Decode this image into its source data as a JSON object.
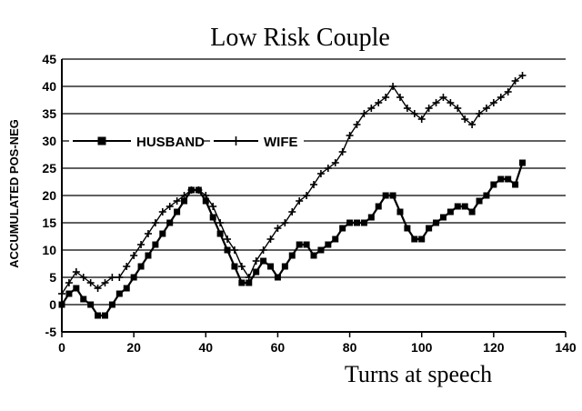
{
  "chart_data": {
    "type": "line",
    "title": "Low Risk Couple",
    "xlabel": "Turns at speech",
    "ylabel": "ACCUMULATED POS-NEG",
    "xlim": [
      0,
      140
    ],
    "ylim": [
      -5,
      45
    ],
    "xticks": [
      0,
      20,
      40,
      60,
      80,
      100,
      120,
      140
    ],
    "yticks": [
      -5,
      0,
      5,
      10,
      15,
      20,
      25,
      30,
      35,
      40,
      45
    ],
    "grid": "horizontal",
    "legend_position": "upper-left",
    "series": [
      {
        "name": "HUSBAND",
        "marker": "square",
        "x": [
          0,
          2,
          4,
          6,
          8,
          10,
          12,
          14,
          16,
          18,
          20,
          22,
          24,
          26,
          28,
          30,
          32,
          34,
          36,
          38,
          40,
          42,
          44,
          46,
          48,
          50,
          52,
          54,
          56,
          58,
          60,
          62,
          64,
          66,
          68,
          70,
          72,
          74,
          76,
          78,
          80,
          82,
          84,
          86,
          88,
          90,
          92,
          94,
          96,
          98,
          100,
          102,
          104,
          106,
          108,
          110,
          112,
          114,
          116,
          118,
          120,
          122,
          124,
          126,
          128
        ],
        "y": [
          0,
          2,
          3,
          1,
          0,
          -2,
          -2,
          0,
          2,
          3,
          5,
          7,
          9,
          11,
          13,
          15,
          17,
          19,
          21,
          21,
          19,
          16,
          13,
          10,
          7,
          4,
          4,
          6,
          8,
          7,
          5,
          7,
          9,
          11,
          11,
          9,
          10,
          11,
          12,
          14,
          15,
          15,
          15,
          16,
          18,
          20,
          20,
          17,
          14,
          12,
          12,
          14,
          15,
          16,
          17,
          18,
          18,
          17,
          19,
          20,
          22,
          23,
          23,
          22,
          26
        ]
      },
      {
        "name": "WIFE",
        "marker": "plus",
        "x": [
          0,
          2,
          4,
          6,
          8,
          10,
          12,
          14,
          16,
          18,
          20,
          22,
          24,
          26,
          28,
          30,
          32,
          34,
          36,
          38,
          40,
          42,
          44,
          46,
          48,
          50,
          52,
          54,
          56,
          58,
          60,
          62,
          64,
          66,
          68,
          70,
          72,
          74,
          76,
          78,
          80,
          82,
          84,
          86,
          88,
          90,
          92,
          94,
          96,
          98,
          100,
          102,
          104,
          106,
          108,
          110,
          112,
          114,
          116,
          118,
          120,
          122,
          124,
          126,
          128
        ],
        "y": [
          2,
          4,
          6,
          5,
          4,
          3,
          4,
          5,
          5,
          7,
          9,
          11,
          13,
          15,
          17,
          18,
          19,
          20,
          21,
          21,
          20,
          18,
          15,
          12,
          10,
          7,
          5,
          8,
          10,
          12,
          14,
          15,
          17,
          19,
          20,
          22,
          24,
          25,
          26,
          28,
          31,
          33,
          35,
          36,
          37,
          38,
          40,
          38,
          36,
          35,
          34,
          36,
          37,
          38,
          37,
          36,
          34,
          33,
          35,
          36,
          37,
          38,
          39,
          41,
          42
        ]
      }
    ]
  }
}
